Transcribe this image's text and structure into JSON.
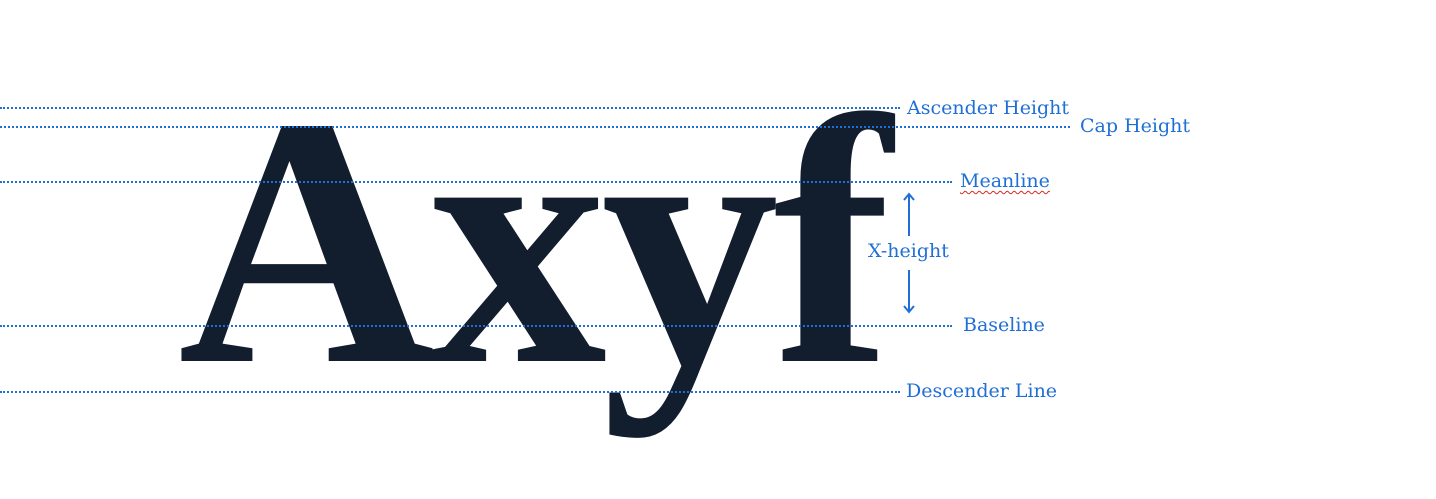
{
  "diagram": {
    "sample_text": "Axyf",
    "guides": {
      "ascender": {
        "label": "Ascender Height"
      },
      "cap": {
        "label": "Cap Height"
      },
      "meanline": {
        "label": "Meanline"
      },
      "baseline": {
        "label": "Baseline"
      },
      "descender": {
        "label": "Descender Line"
      }
    },
    "xheight_label": "X-height"
  },
  "colors": {
    "guide": "#1f6fd6",
    "glyph": "#121d2e",
    "spellcheck": "#d12a2a"
  }
}
